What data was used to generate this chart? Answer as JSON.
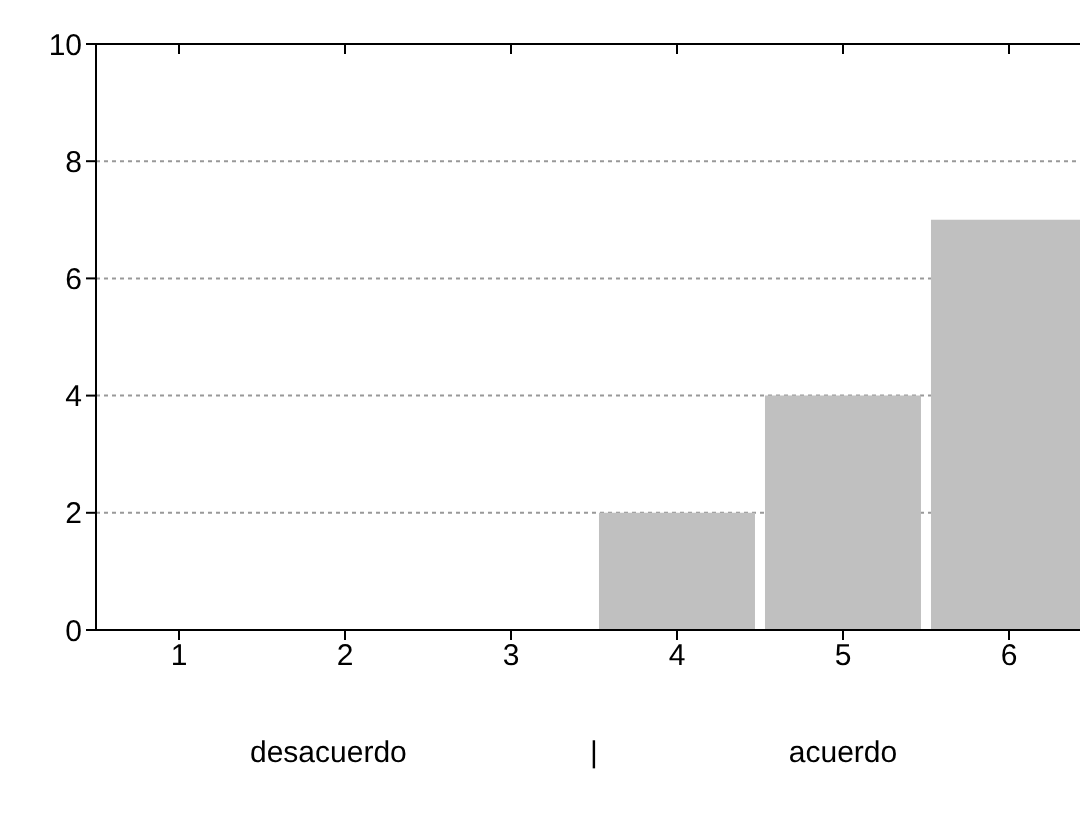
{
  "chart_data": {
    "type": "bar",
    "categories": [
      "1",
      "2",
      "3",
      "4",
      "5",
      "6"
    ],
    "values": [
      0,
      0,
      0,
      2,
      4,
      7
    ],
    "color": "#c0c0c0",
    "ylim": [
      0,
      10
    ],
    "yticks": [
      0,
      2,
      4,
      6,
      8,
      10
    ],
    "grid": "y",
    "annotations": [
      "desacuerdo",
      "|",
      "acuerdo"
    ]
  }
}
